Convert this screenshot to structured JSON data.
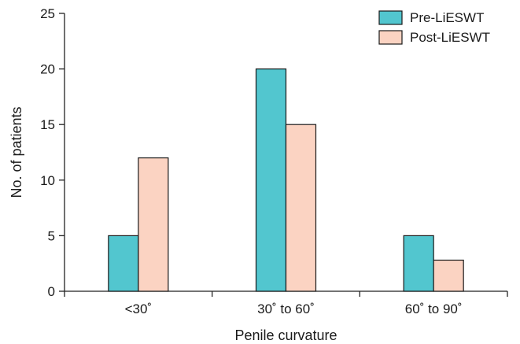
{
  "chart_data": {
    "type": "bar",
    "xlabel": "Penile curvature",
    "ylabel": "No. of patients",
    "categories": [
      "<30˚",
      "30˚ to 60˚",
      "60˚ to 90˚"
    ],
    "series": [
      {
        "name": "Pre-LiESWT",
        "values": [
          5,
          20,
          5
        ],
        "color": "#52c6cf"
      },
      {
        "name": "Post-LiESWT",
        "values": [
          12,
          15,
          2.8
        ],
        "color": "#fbd3c2"
      }
    ],
    "ylim": [
      0,
      25
    ],
    "yticks": [
      0,
      5,
      10,
      15,
      20,
      25
    ],
    "grid": false,
    "legend_position": "top-right"
  }
}
